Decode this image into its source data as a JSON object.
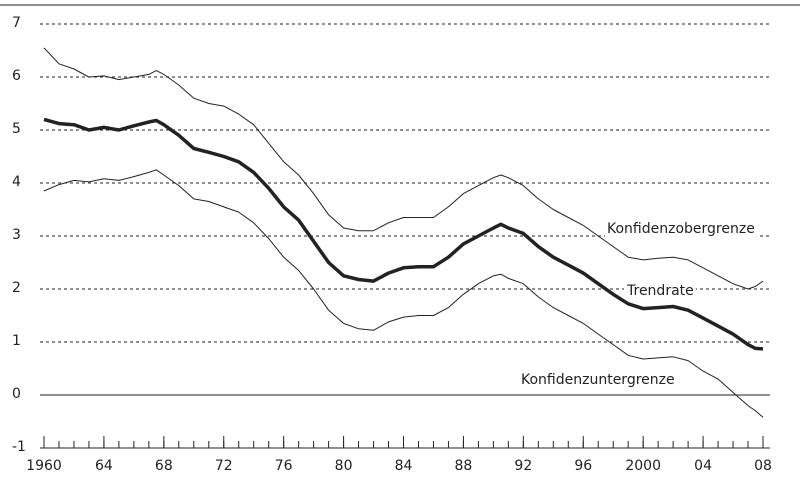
{
  "chart_data": {
    "type": "line",
    "x": [
      1960,
      1961,
      1962,
      1963,
      1964,
      1965,
      1966,
      1967,
      1967.5,
      1968,
      1969,
      1970,
      1971,
      1972,
      1973,
      1974,
      1975,
      1976,
      1977,
      1978,
      1979,
      1980,
      1981,
      1982,
      1983,
      1984,
      1985,
      1986,
      1987,
      1988,
      1989,
      1990,
      1990.5,
      1991,
      1992,
      1993,
      1994,
      1995,
      1996,
      1997,
      1998,
      1999,
      2000,
      2001,
      2002,
      2003,
      2004,
      2005,
      2006,
      2007,
      2007.5,
      2008
    ],
    "series": [
      {
        "name": "Konfidenzobergrenze",
        "color": "#222222",
        "width": 1,
        "values": [
          6.55,
          6.25,
          6.15,
          6.0,
          6.02,
          5.95,
          6.0,
          6.05,
          6.12,
          6.05,
          5.85,
          5.6,
          5.5,
          5.45,
          5.3,
          5.1,
          4.75,
          4.4,
          4.15,
          3.8,
          3.4,
          3.15,
          3.1,
          3.1,
          3.25,
          3.35,
          3.35,
          3.35,
          3.55,
          3.8,
          3.95,
          4.1,
          4.15,
          4.1,
          3.95,
          3.7,
          3.5,
          3.35,
          3.2,
          3.0,
          2.8,
          2.6,
          2.55,
          2.58,
          2.6,
          2.55,
          2.4,
          2.25,
          2.1,
          2.0,
          2.05,
          2.15
        ]
      },
      {
        "name": "Trendrate",
        "color": "#222222",
        "width": 3.5,
        "values": [
          5.2,
          5.12,
          5.1,
          5.0,
          5.05,
          5.0,
          5.08,
          5.15,
          5.18,
          5.1,
          4.9,
          4.65,
          4.58,
          4.5,
          4.4,
          4.2,
          3.9,
          3.55,
          3.3,
          2.9,
          2.5,
          2.25,
          2.18,
          2.15,
          2.3,
          2.4,
          2.42,
          2.42,
          2.6,
          2.85,
          3.0,
          3.15,
          3.22,
          3.15,
          3.05,
          2.8,
          2.6,
          2.45,
          2.3,
          2.1,
          1.9,
          1.72,
          1.63,
          1.65,
          1.67,
          1.6,
          1.45,
          1.3,
          1.15,
          0.95,
          0.88,
          0.87
        ]
      },
      {
        "name": "Konfidenzuntergrenze",
        "color": "#222222",
        "width": 1,
        "values": [
          3.85,
          3.97,
          4.05,
          4.02,
          4.08,
          4.05,
          4.12,
          4.2,
          4.25,
          4.15,
          3.95,
          3.7,
          3.65,
          3.55,
          3.45,
          3.25,
          2.95,
          2.6,
          2.35,
          2.0,
          1.6,
          1.35,
          1.25,
          1.22,
          1.38,
          1.47,
          1.5,
          1.5,
          1.65,
          1.9,
          2.1,
          2.25,
          2.28,
          2.2,
          2.1,
          1.85,
          1.65,
          1.5,
          1.35,
          1.15,
          0.95,
          0.75,
          0.68,
          0.7,
          0.72,
          0.65,
          0.45,
          0.3,
          0.05,
          -0.2,
          -0.3,
          -0.42
        ]
      }
    ],
    "xlim": [
      1960,
      2008
    ],
    "xticks": [
      1960,
      {
        "value": 1964,
        "label": "64"
      },
      {
        "value": 1968,
        "label": "68"
      },
      {
        "value": 1972,
        "label": "72"
      },
      {
        "value": 1976,
        "label": "76"
      },
      {
        "value": 1980,
        "label": "80"
      },
      {
        "value": 1984,
        "label": "84"
      },
      {
        "value": 1988,
        "label": "88"
      },
      {
        "value": 1992,
        "label": "92"
      },
      {
        "value": 1996,
        "label": "96"
      },
      2000,
      {
        "value": 2004,
        "label": "04"
      },
      {
        "value": 2008,
        "label": "08"
      }
    ],
    "ylim": [
      -1,
      7
    ],
    "yticks": [
      -1,
      0,
      1,
      2,
      3,
      4,
      5,
      6,
      7
    ],
    "grid": true
  }
}
